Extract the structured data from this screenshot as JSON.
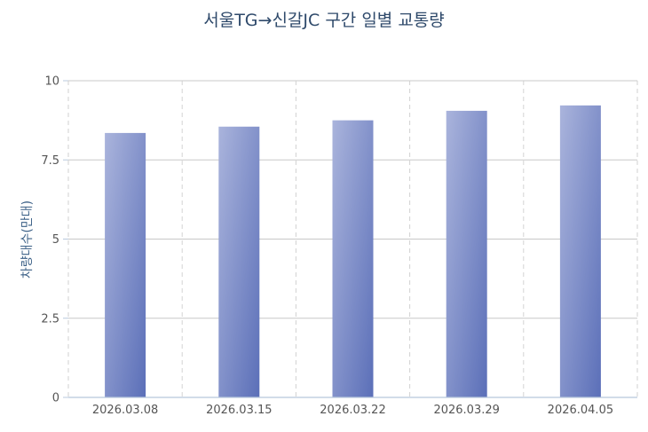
{
  "chart_data": {
    "type": "bar",
    "title": "서울TG→신갈JC 구간 일별 교통량",
    "xlabel": "",
    "ylabel": "차량대수(만대)",
    "categories": [
      "2026.03.08",
      "2026.03.15",
      "2026.03.22",
      "2026.03.29",
      "2026.04.05"
    ],
    "values": [
      8.35,
      8.55,
      8.75,
      9.05,
      9.22
    ],
    "ylim": [
      0,
      10
    ],
    "yticks": [
      "0",
      "2.5",
      "5",
      "7.5",
      "10"
    ],
    "ytick_values": [
      0,
      2.5,
      5,
      7.5,
      10
    ],
    "grid": true,
    "legend": "none",
    "colors": {
      "bar_light": "#aab4dc",
      "bar_dark": "#5b6fb8",
      "grid_h": "#c8c8c8",
      "grid_v": "#d2d2d2",
      "axis": "#b8c8dc",
      "title": "#2f4a6b"
    }
  }
}
